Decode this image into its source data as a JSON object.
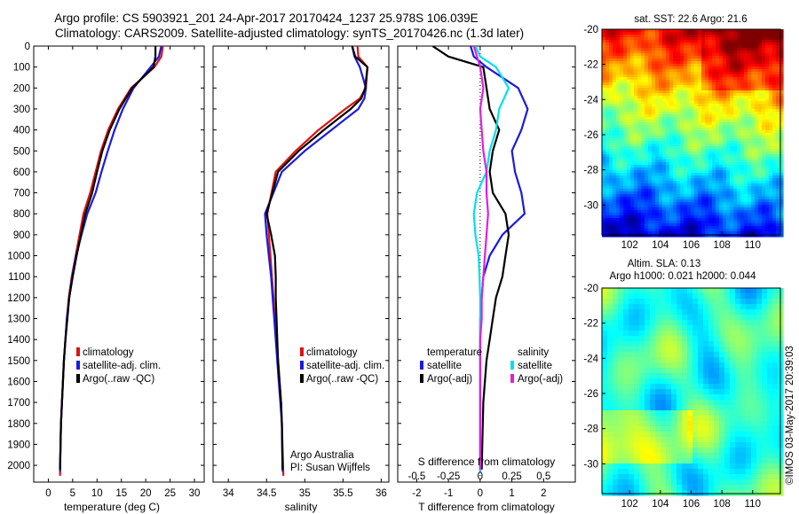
{
  "header": {
    "line1": "Argo profile: CS 5903921_201 24-Apr-2017 20170424_1237 25.978S 106.039E",
    "line2": "Climatology: CARS2009. Satellite-adjusted climatology: synTS_20170426.nc (1.3d later)"
  },
  "colors": {
    "climatology": "#e01010",
    "satellite": "#1a1ae0",
    "argo": "#000000",
    "satellite_salinity": "#00e0e8",
    "argo_salinity": "#e020e0"
  },
  "depth_axis": {
    "ticks": [
      "0",
      "100",
      "200",
      "300",
      "400",
      "500",
      "600",
      "700",
      "800",
      "900",
      "1000",
      "1100",
      "1200",
      "1300",
      "1400",
      "1500",
      "1600",
      "1700",
      "1800",
      "1900",
      "2000"
    ]
  },
  "temperature_panel": {
    "xlabel": "temperature (deg C)",
    "xticks": [
      "0",
      "5",
      "10",
      "15",
      "20",
      "25",
      "30"
    ],
    "legend": [
      "climatology",
      "satellite-adj. clim.",
      "Argo(..raw -QC)"
    ]
  },
  "salinity_panel": {
    "xlabel": "salinity",
    "xticks": [
      "34",
      "34.5",
      "35",
      "35.5",
      "36"
    ],
    "legend": [
      "climatology",
      "satellite-adj. clim.",
      "Argo(..raw -QC)"
    ],
    "note1": "Argo Australia",
    "note2": "PI: Susan Wijffels"
  },
  "difference_panel": {
    "legend_temp_title": "temperature",
    "legend_sal_title": "salinity",
    "legend_temp": [
      "satellite",
      "Argo(-adj)"
    ],
    "legend_sal": [
      "satellite",
      "Argo(-adj)"
    ],
    "top_label": "S difference from climatology",
    "s_ticks": [
      "-0.5",
      "-0.25",
      "0",
      "0.25",
      "0.5"
    ],
    "t_ticks": [
      "-2",
      "-1",
      "0",
      "1",
      "2"
    ],
    "xlabel": "T difference from climatology"
  },
  "sst_map": {
    "title": "sat. SST: 22.6 Argo: 21.6",
    "yticks": [
      "-20",
      "-22",
      "-24",
      "-26",
      "-28",
      "-30"
    ],
    "xticks": [
      "102",
      "104",
      "106",
      "108",
      "110"
    ]
  },
  "sla_map": {
    "title1": "Altim. SLA: 0.13",
    "title2": "Argo h1000: 0.021 h2000: 0.044",
    "yticks": [
      "-20",
      "-22",
      "-24",
      "-26",
      "-28",
      "-30"
    ],
    "xticks": [
      "102",
      "104",
      "106",
      "108",
      "110"
    ]
  },
  "watermark": "©IMOS 03-May-2017 20:39:03",
  "chart_data": [
    {
      "type": "line",
      "panel": "temperature",
      "xlabel": "temperature (deg C)",
      "ylabel": "",
      "xlim": [
        -3,
        32
      ],
      "ylim": [
        2080,
        0
      ],
      "series": [
        {
          "name": "climatology",
          "x": [
            23.5,
            23.2,
            21.8,
            17.0,
            14.3,
            12.3,
            10.8,
            9.7,
            8.6,
            7.2,
            6.4,
            5.6,
            4.8,
            4.2,
            3.8,
            3.5,
            3.2,
            3.0,
            2.8,
            2.6,
            2.5,
            2.4
          ],
          "y": [
            0,
            50,
            100,
            200,
            300,
            400,
            500,
            600,
            700,
            800,
            900,
            1000,
            1100,
            1200,
            1300,
            1400,
            1500,
            1600,
            1700,
            1800,
            1900,
            2050
          ]
        },
        {
          "name": "satellite-adj. clim.",
          "x": [
            23.2,
            22.7,
            21.0,
            17.5,
            15.3,
            13.6,
            12.2,
            10.9,
            9.7,
            8.0,
            6.8,
            5.7,
            4.9,
            4.3,
            3.8,
            3.5,
            3.2,
            3.0,
            2.8,
            2.6,
            2.5,
            2.4
          ],
          "y": [
            0,
            50,
            100,
            200,
            300,
            400,
            500,
            600,
            700,
            800,
            900,
            1000,
            1100,
            1200,
            1300,
            1400,
            1500,
            1600,
            1700,
            1800,
            1900,
            2030
          ]
        },
        {
          "name": "Argo(..raw -QC)",
          "x": [
            22.0,
            22.0,
            21.6,
            17.2,
            14.6,
            12.6,
            11.1,
            10.0,
            9.0,
            7.6,
            6.7,
            5.8,
            5.0,
            4.3,
            3.9,
            3.5,
            3.2,
            3.0,
            2.8,
            2.6,
            2.5,
            2.4
          ],
          "y": [
            0,
            50,
            100,
            200,
            300,
            400,
            500,
            600,
            700,
            800,
            900,
            1000,
            1100,
            1200,
            1300,
            1400,
            1500,
            1600,
            1700,
            1800,
            1900,
            2020
          ]
        }
      ]
    },
    {
      "type": "line",
      "panel": "salinity",
      "xlabel": "salinity",
      "ylabel": "",
      "xlim": [
        33.8,
        36.1
      ],
      "ylim": [
        2080,
        0
      ],
      "series": [
        {
          "name": "climatology",
          "x": [
            35.69,
            35.7,
            35.82,
            35.8,
            35.72,
            35.53,
            35.18,
            34.88,
            34.62,
            34.51,
            34.53,
            34.55,
            34.57,
            34.59,
            34.61,
            34.63,
            34.65,
            34.67,
            34.69,
            34.7,
            34.72
          ],
          "y": [
            0,
            50,
            100,
            200,
            250,
            300,
            400,
            500,
            600,
            800,
            900,
            1000,
            1100,
            1200,
            1300,
            1400,
            1500,
            1600,
            1700,
            1800,
            2050
          ]
        },
        {
          "name": "satellite-adj. clim.",
          "x": [
            35.62,
            35.65,
            35.72,
            35.8,
            35.78,
            35.7,
            35.35,
            35.0,
            34.7,
            34.48,
            34.5,
            34.53,
            34.56,
            34.58,
            34.6,
            34.62,
            34.64,
            34.66,
            34.68,
            34.7,
            34.71
          ],
          "y": [
            0,
            50,
            100,
            200,
            250,
            300,
            400,
            500,
            600,
            800,
            900,
            1000,
            1100,
            1200,
            1300,
            1400,
            1500,
            1600,
            1700,
            1800,
            2030
          ]
        },
        {
          "name": "Argo(..raw -QC)",
          "x": [
            35.62,
            35.66,
            35.82,
            35.79,
            35.74,
            35.6,
            35.25,
            34.92,
            34.65,
            34.5,
            34.56,
            34.61,
            34.62,
            34.62,
            34.63,
            34.64,
            34.65,
            34.67,
            34.69,
            34.7,
            34.71
          ],
          "y": [
            0,
            50,
            100,
            200,
            250,
            300,
            400,
            500,
            600,
            800,
            900,
            1000,
            1100,
            1200,
            1300,
            1400,
            1500,
            1600,
            1700,
            1800,
            2020
          ]
        }
      ]
    },
    {
      "type": "line",
      "panel": "difference",
      "xlabel": "T difference from climatology",
      "x2label": "S difference from climatology",
      "xlim": [
        -2.6,
        3
      ],
      "ylim": [
        2080,
        0
      ],
      "series": [
        {
          "name": "temperature satellite",
          "x": [
            -0.3,
            -0.2,
            0.2,
            1.2,
            1.5,
            1.3,
            1.0,
            1.1,
            1.3,
            1.4,
            0.7,
            0.3,
            0.1,
            0.05,
            0.0,
            0.0,
            0.0,
            0.0,
            0.0,
            0.0
          ],
          "y": [
            0,
            50,
            100,
            200,
            300,
            400,
            500,
            600,
            700,
            800,
            900,
            1000,
            1100,
            1200,
            1300,
            1400,
            1500,
            1600,
            1700,
            2030
          ]
        },
        {
          "name": "temperature Argo(-adj)",
          "x": [
            -1.5,
            -1.0,
            0.1,
            0.2,
            0.3,
            0.6,
            0.4,
            0.3,
            0.4,
            0.8,
            0.9,
            0.8,
            0.7,
            0.5,
            0.4,
            0.3,
            0.2,
            0.15,
            0.1,
            0.05
          ],
          "y": [
            0,
            50,
            100,
            200,
            300,
            400,
            500,
            600,
            700,
            800,
            900,
            1000,
            1100,
            1200,
            1300,
            1400,
            1500,
            1600,
            1700,
            2020
          ]
        },
        {
          "name": "salinity satellite",
          "x": [
            -0.15,
            0.0,
            0.5,
            0.9,
            0.6,
            0.5,
            0.3,
            0.2,
            -0.1,
            -0.2,
            -0.15,
            -0.05,
            -0.02,
            0.0,
            0.0,
            0.0,
            0.0,
            0.0,
            0.0,
            0.0
          ],
          "y": [
            0,
            50,
            100,
            200,
            300,
            400,
            500,
            600,
            700,
            800,
            900,
            1000,
            1100,
            1200,
            1300,
            1400,
            1500,
            1600,
            1700,
            2030
          ]
        },
        {
          "name": "salinity Argo(-adj)",
          "x": [
            -0.2,
            -0.1,
            0.0,
            0.1,
            0.0,
            0.05,
            0.1,
            0.2,
            0.2,
            0.25,
            0.2,
            0.15,
            0.1,
            0.05,
            0.05,
            0.0,
            0.0,
            0.0,
            0.0,
            0.0
          ],
          "y": [
            0,
            50,
            100,
            200,
            300,
            400,
            500,
            600,
            700,
            800,
            900,
            1000,
            1100,
            1200,
            1300,
            1400,
            1500,
            1600,
            1700,
            2020
          ]
        }
      ]
    },
    {
      "type": "heatmap",
      "panel": "sat. SST map",
      "title": "sat. SST: 22.6 Argo: 21.6",
      "xlim": [
        100.2,
        111.8
      ],
      "ylim": [
        -31.7,
        -20
      ]
    },
    {
      "type": "heatmap",
      "panel": "altimetry SLA map",
      "title": "Altim. SLA: 0.13",
      "xlim": [
        100.2,
        111.8
      ],
      "ylim": [
        -31.7,
        -20
      ]
    }
  ]
}
